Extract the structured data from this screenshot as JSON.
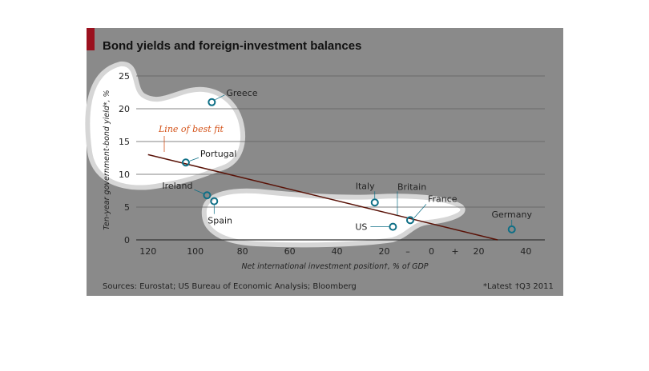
{
  "chart_data": {
    "type": "scatter",
    "title": "Bond yields and foreign-investment balances",
    "xlabel": "Net international investment position†, % of GDP",
    "ylabel": "Ten-year government-bond yield*, %",
    "xlim": [
      125,
      -48
    ],
    "ylim": [
      0,
      25
    ],
    "xticks": [
      {
        "value": 120,
        "label": "120"
      },
      {
        "value": 100,
        "label": "100"
      },
      {
        "value": 80,
        "label": "80"
      },
      {
        "value": 60,
        "label": "60"
      },
      {
        "value": 40,
        "label": "40"
      },
      {
        "value": 20,
        "label": "20"
      },
      {
        "value": 10,
        "label": "–"
      },
      {
        "value": 0,
        "label": "0"
      },
      {
        "value": -10,
        "label": "+"
      },
      {
        "value": -20,
        "label": "20"
      },
      {
        "value": -40,
        "label": "40"
      }
    ],
    "yticks": [
      0,
      5,
      10,
      15,
      20,
      25
    ],
    "grid": true,
    "points": [
      {
        "label": "Greece",
        "x": 93,
        "y": 21
      },
      {
        "label": "Portugal",
        "x": 104,
        "y": 11.8
      },
      {
        "label": "Ireland",
        "x": 95,
        "y": 6.8
      },
      {
        "label": "Spain",
        "x": 92,
        "y": 5.9
      },
      {
        "label": "Italy",
        "x": 24,
        "y": 5.7
      },
      {
        "label": "Britain",
        "x": 9,
        "y": 3
      },
      {
        "label": "France",
        "x": 9,
        "y": 3
      },
      {
        "label": "US",
        "x": 17,
        "y": 2
      },
      {
        "label": "Germany",
        "x": -34,
        "y": 1.6
      }
    ],
    "best_fit": {
      "label": "Line of best fit",
      "from": [
        120,
        13
      ],
      "to": [
        -28,
        0
      ]
    },
    "sources": "Sources: Eurostat; US Bureau of Economic Analysis; Bloomberg",
    "footnote_latest": "*Latest",
    "footnote_period": "†Q3 2011"
  },
  "colors": {
    "panel": "#8a8a8a",
    "accent": "#9b111e",
    "marker": "#0e6f86",
    "bestfit_line": "#5a1308",
    "bestfit_label": "#d4541b"
  }
}
